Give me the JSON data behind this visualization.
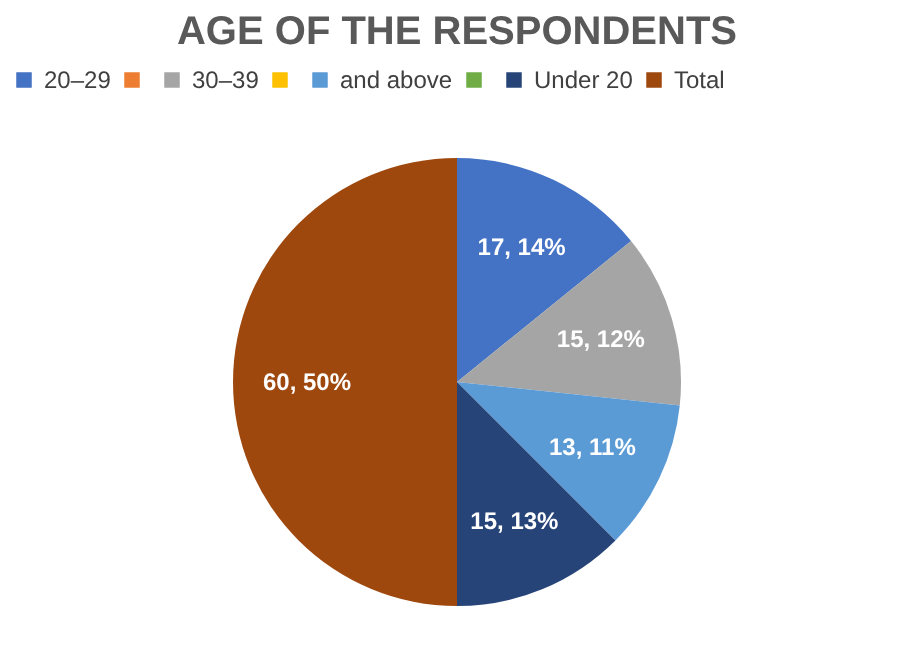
{
  "chart_data": {
    "type": "pie",
    "title": "AGE OF THE RESPONDENTS",
    "categories": [
      "20–29",
      null,
      "30–39",
      null,
      "and above",
      null,
      "Under 20",
      "Total"
    ],
    "values": [
      17,
      0,
      15,
      0,
      13,
      0,
      15,
      60
    ],
    "colors": [
      "#4472c4",
      "#ed7d31",
      "#a5a5a5",
      "#ffc000",
      "#5b9bd5",
      "#70ad47",
      "#264478",
      "#9e480e"
    ],
    "value_labels": [
      "17, 14%",
      null,
      "15, 12%",
      null,
      "13, 11%",
      null,
      "15, 13%",
      "60, 50%"
    ],
    "legend": "top"
  }
}
